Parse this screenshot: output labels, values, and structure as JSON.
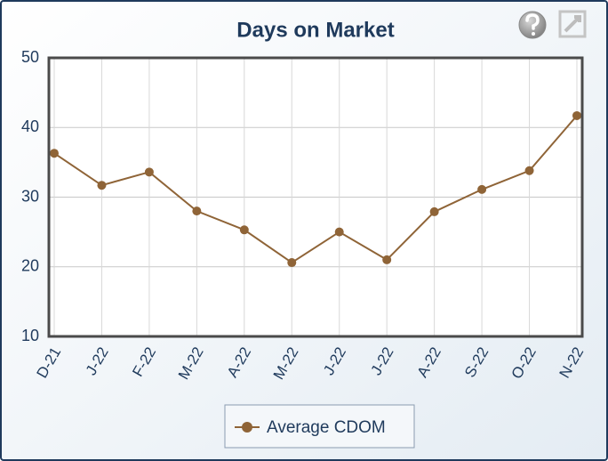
{
  "chart_data": {
    "type": "line",
    "title": "Days on Market",
    "categories": [
      "D-21",
      "J-22",
      "F-22",
      "M-22",
      "A-22",
      "M-22",
      "J-22",
      "J-22",
      "A-22",
      "S-22",
      "O-22",
      "N-22"
    ],
    "series": [
      {
        "name": "Average CDOM",
        "color": "#8f6437",
        "values": [
          36.3,
          31.7,
          33.6,
          28.0,
          25.3,
          20.6,
          25.0,
          21.0,
          27.9,
          31.1,
          33.8,
          41.7
        ]
      }
    ],
    "ylim": [
      10,
      50
    ],
    "yticks": [
      10,
      20,
      30,
      40,
      50
    ],
    "grid": true
  }
}
